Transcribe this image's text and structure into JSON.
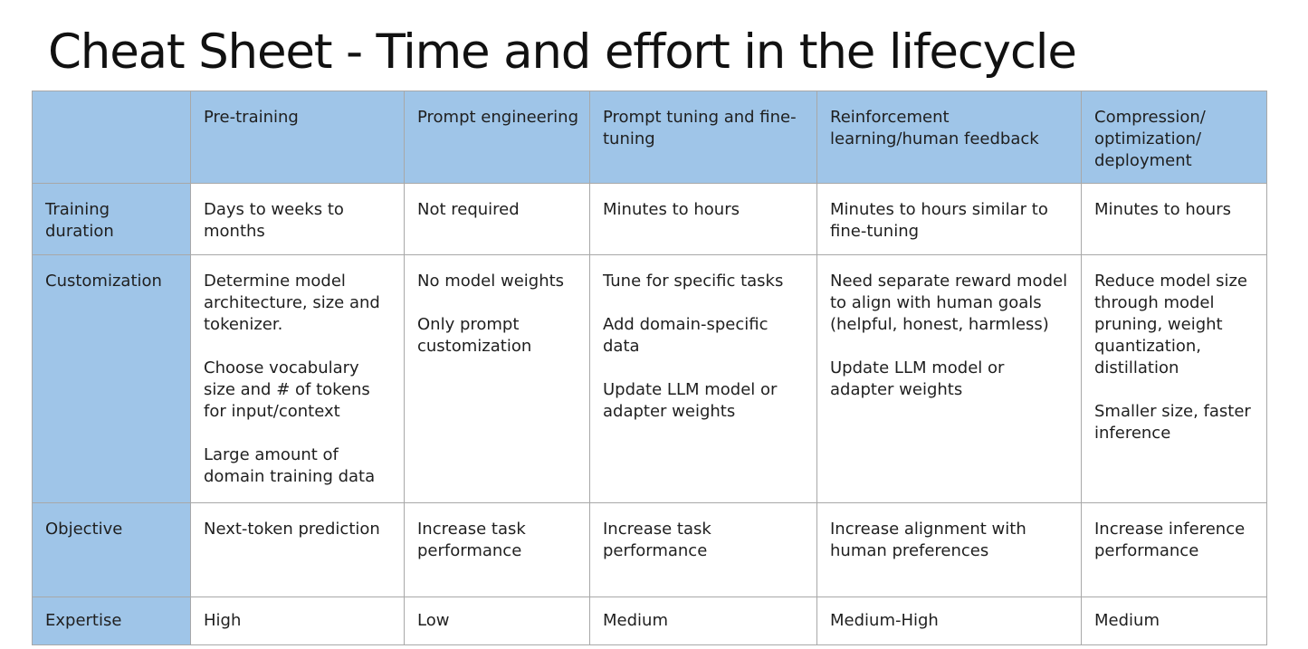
{
  "title": "Cheat Sheet - Time and effort in the lifecycle",
  "colors": {
    "header_fill": "#9fc5e8",
    "border": "#a8a8a8"
  },
  "table": {
    "corner": "",
    "columns": [
      "Pre-training",
      "Prompt engineering",
      "Prompt tuning and fine-tuning",
      "Reinforcement learning/human feedback",
      "Compression/ optimization/ deployment"
    ],
    "rows": [
      {
        "label": "Training duration",
        "cells": [
          [
            "Days to weeks to months"
          ],
          [
            "Not required"
          ],
          [
            "Minutes to hours"
          ],
          [
            "Minutes to hours similar to fine-tuning"
          ],
          [
            "Minutes to hours"
          ]
        ]
      },
      {
        "label": "Customization",
        "cells": [
          [
            "Determine model architecture, size and tokenizer.",
            "Choose vocabulary size and # of tokens for input/context",
            "Large amount of domain training data"
          ],
          [
            "No model weights",
            "Only prompt customization"
          ],
          [
            "Tune for specific tasks",
            "Add domain-specific data",
            "Update LLM model or adapter weights"
          ],
          [
            "Need separate reward model to align with human goals (helpful, honest, harmless)",
            "Update LLM model or adapter weights"
          ],
          [
            "Reduce model size through model pruning, weight quantization, distillation",
            "Smaller size, faster inference"
          ]
        ]
      },
      {
        "label": "Objective",
        "cells": [
          [
            "Next-token prediction"
          ],
          [
            "Increase task performance"
          ],
          [
            "Increase task performance"
          ],
          [
            "Increase alignment with human preferences"
          ],
          [
            "Increase inference performance"
          ]
        ]
      },
      {
        "label": "Expertise",
        "cells": [
          [
            "High"
          ],
          [
            "Low"
          ],
          [
            "Medium"
          ],
          [
            "Medium-High"
          ],
          [
            "Medium"
          ]
        ]
      }
    ]
  }
}
